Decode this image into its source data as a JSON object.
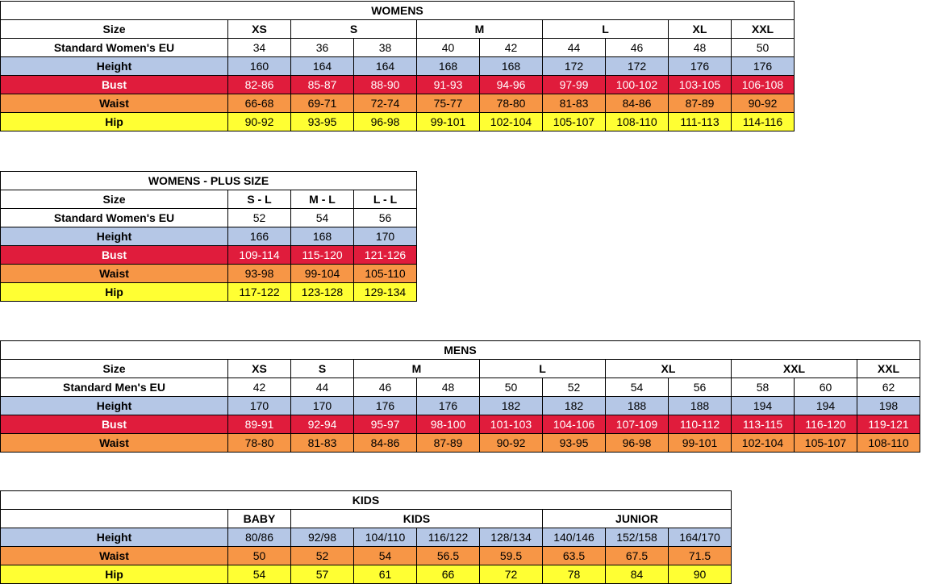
{
  "womens": {
    "title": "WOMENS",
    "size_label": "Size",
    "size_groups": [
      "XS",
      "S",
      "M",
      "L",
      "XL",
      "XXL"
    ],
    "rows": [
      {
        "label": "Standard Women's EU",
        "values": [
          "34",
          "36",
          "38",
          "40",
          "42",
          "44",
          "46",
          "48",
          "50"
        ]
      },
      {
        "label": "Height",
        "values": [
          "160",
          "164",
          "164",
          "168",
          "168",
          "172",
          "172",
          "176",
          "176"
        ]
      },
      {
        "label": "Bust",
        "values": [
          "82-86",
          "85-87",
          "88-90",
          "91-93",
          "94-96",
          "97-99",
          "100-102",
          "103-105",
          "106-108"
        ]
      },
      {
        "label": "Waist",
        "values": [
          "66-68",
          "69-71",
          "72-74",
          "75-77",
          "78-80",
          "81-83",
          "84-86",
          "87-89",
          "90-92"
        ]
      },
      {
        "label": "Hip",
        "values": [
          "90-92",
          "93-95",
          "96-98",
          "99-101",
          "102-104",
          "105-107",
          "108-110",
          "111-113",
          "114-116"
        ]
      }
    ]
  },
  "plus": {
    "title": "WOMENS - PLUS SIZE",
    "size_label": "Size",
    "sizes": [
      "S - L",
      "M - L",
      "L - L"
    ],
    "rows": [
      {
        "label": "Standard Women's EU",
        "values": [
          "52",
          "54",
          "56"
        ]
      },
      {
        "label": "Height",
        "values": [
          "166",
          "168",
          "170"
        ]
      },
      {
        "label": "Bust",
        "values": [
          "109-114",
          "115-120",
          "121-126"
        ]
      },
      {
        "label": "Waist",
        "values": [
          "93-98",
          "99-104",
          "105-110"
        ]
      },
      {
        "label": "Hip",
        "values": [
          "117-122",
          "123-128",
          "129-134"
        ]
      }
    ]
  },
  "mens": {
    "title": "MENS",
    "size_label": "Size",
    "size_groups": [
      "XS",
      "S",
      "M",
      "L",
      "XL",
      "XXL",
      "XXL"
    ],
    "rows": [
      {
        "label": "Standard Men's EU",
        "values": [
          "42",
          "44",
          "46",
          "48",
          "50",
          "52",
          "54",
          "56",
          "58",
          "60",
          "62"
        ]
      },
      {
        "label": "Height",
        "values": [
          "170",
          "170",
          "176",
          "176",
          "182",
          "182",
          "188",
          "188",
          "194",
          "194",
          "198"
        ]
      },
      {
        "label": "Bust",
        "values": [
          "89-91",
          "92-94",
          "95-97",
          "98-100",
          "101-103",
          "104-106",
          "107-109",
          "110-112",
          "113-115",
          "116-120",
          "119-121"
        ]
      },
      {
        "label": "Waist",
        "values": [
          "78-80",
          "81-83",
          "84-86",
          "87-89",
          "90-92",
          "93-95",
          "96-98",
          "99-101",
          "102-104",
          "105-107",
          "108-110"
        ]
      }
    ]
  },
  "kids": {
    "title": "KIDS",
    "groups": [
      "BABY",
      "KIDS",
      "JUNIOR"
    ],
    "rows": [
      {
        "label": "Height",
        "values": [
          "80/86",
          "92/98",
          "104/110",
          "116/122",
          "128/134",
          "140/146",
          "152/158",
          "164/170"
        ]
      },
      {
        "label": "Waist",
        "values": [
          "50",
          "52",
          "54",
          "56.5",
          "59.5",
          "63.5",
          "67.5",
          "71.5"
        ]
      },
      {
        "label": "Hip",
        "values": [
          "54",
          "57",
          "61",
          "66",
          "72",
          "78",
          "84",
          "90"
        ]
      }
    ]
  },
  "colors": {
    "height_row": "#b5c7e6",
    "bust_row": "#e01c3c",
    "waist_row": "#f79646",
    "hip_row": "#ffff33"
  }
}
